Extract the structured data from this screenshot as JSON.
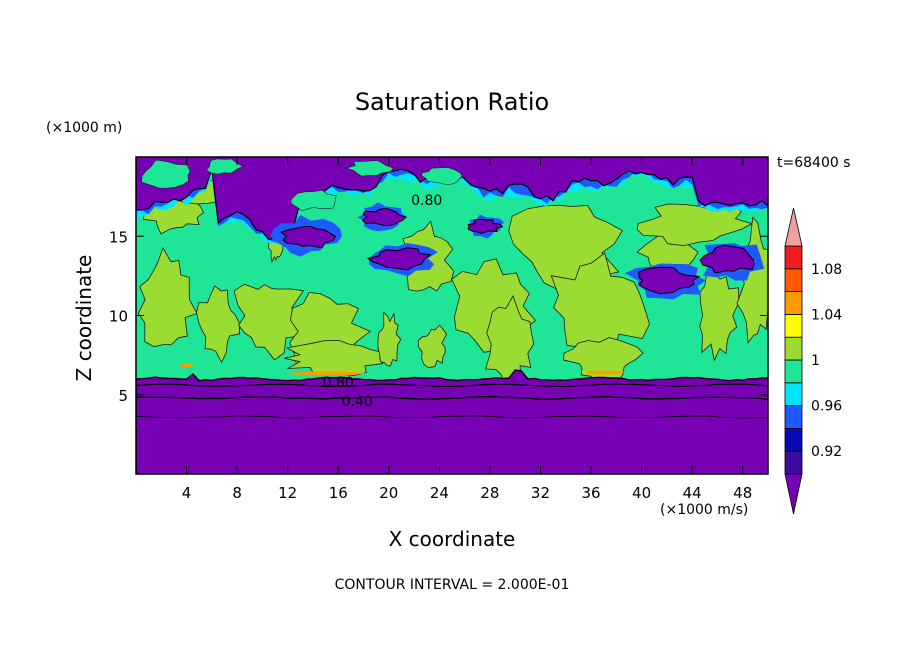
{
  "chart_data": {
    "type": "heatmap",
    "title": "Saturation Ratio",
    "xlabel": "X coordinate",
    "ylabel": "Z coordinate",
    "x_unit": "(×1000 m/s)",
    "y_unit": "(×1000 m)",
    "time_label": "t=68400 s",
    "contour_interval_text": "CONTOUR INTERVAL = 2.000E-01",
    "xlim": [
      0,
      50
    ],
    "ylim": [
      0,
      20
    ],
    "x_ticks": [
      4,
      8,
      12,
      16,
      20,
      24,
      28,
      32,
      36,
      40,
      44,
      48
    ],
    "y_ticks": [
      5,
      10,
      15
    ],
    "contour_labels": [
      {
        "text": "0.80",
        "x": 23,
        "z": 17.3
      },
      {
        "text": "0.80",
        "x": 16,
        "z": 5.8
      },
      {
        "text": "0.40",
        "x": 17.5,
        "z": 4.6
      }
    ],
    "colorbar": {
      "levels": [
        0.9,
        0.92,
        0.94,
        0.96,
        0.98,
        1.0,
        1.02,
        1.04,
        1.06,
        1.08,
        1.1
      ],
      "tick_labels": [
        "0.92",
        "0.96",
        "1",
        "1.04",
        "1.08"
      ],
      "tick_values": [
        0.92,
        0.96,
        1.0,
        1.04,
        1.08
      ],
      "colors": [
        "#3c0a9e",
        "#0a0ab4",
        "#1e5aff",
        "#00e6ff",
        "#1ee696",
        "#9bdc32",
        "#ffff00",
        "#ff9b00",
        "#ff5a00",
        "#f01e1e"
      ],
      "under_color": "#7800b4",
      "over_color": "#f0a0a0"
    },
    "colors": {
      "low": "#7800b4",
      "near_one": "#1ee696",
      "just_above_one": "#9bdc32",
      "supersat": "#ff9b00",
      "cyan": "#00e6ff",
      "blue": "#1e5aff"
    }
  }
}
